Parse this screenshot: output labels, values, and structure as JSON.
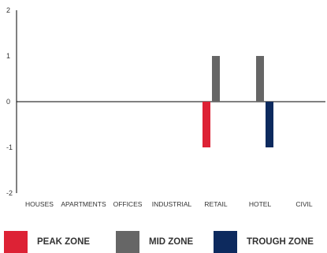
{
  "chart_data": {
    "type": "bar",
    "categories": [
      "HOUSES",
      "APARTMENTS",
      "OFFICES",
      "INDUSTRIAL",
      "RETAIL",
      "HOTEL",
      "CIVIL"
    ],
    "series": [
      {
        "name": "PEAK ZONE",
        "color": "#dd2235",
        "values": [
          0,
          0,
          0,
          0,
          -1,
          0,
          0
        ]
      },
      {
        "name": "MID ZONE",
        "color": "#666666",
        "values": [
          0,
          0,
          0,
          0,
          1,
          1,
          0
        ]
      },
      {
        "name": "TROUGH ZONE",
        "color": "#0d2a5e",
        "values": [
          0,
          0,
          0,
          0,
          0,
          -1,
          0
        ]
      }
    ],
    "ylim": [
      -2,
      2
    ],
    "yticks": [
      "2",
      "1",
      "0",
      "-1",
      "-2"
    ],
    "grid": false,
    "legend_position": "bottom"
  }
}
